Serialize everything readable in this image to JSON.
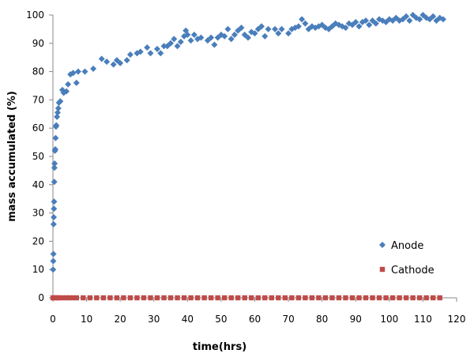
{
  "chart_data": {
    "type": "scatter",
    "title": "",
    "xlabel": "time(hrs)",
    "ylabel": "mass accumulated (%)",
    "xlim": [
      0,
      120
    ],
    "ylim": [
      0,
      100
    ],
    "xticks": [
      0,
      10,
      20,
      30,
      40,
      50,
      60,
      70,
      80,
      90,
      100,
      110,
      120
    ],
    "yticks": [
      0,
      10,
      20,
      30,
      40,
      50,
      60,
      70,
      80,
      90,
      100
    ],
    "grid": false,
    "legend_position": "bottom-right",
    "series": [
      {
        "name": "Anode",
        "color": "#4a7ebb",
        "marker": "diamond",
        "points": [
          [
            0.05,
            10
          ],
          [
            0.1,
            13
          ],
          [
            0.15,
            15.5
          ],
          [
            0.2,
            26
          ],
          [
            0.25,
            28.5
          ],
          [
            0.3,
            31.5
          ],
          [
            0.35,
            34
          ],
          [
            0.4,
            41
          ],
          [
            0.45,
            46
          ],
          [
            0.5,
            47.5
          ],
          [
            0.6,
            52
          ],
          [
            0.7,
            52.5
          ],
          [
            0.8,
            56.5
          ],
          [
            0.9,
            60.5
          ],
          [
            1.0,
            61
          ],
          [
            1.2,
            64
          ],
          [
            1.4,
            65.5
          ],
          [
            1.6,
            67
          ],
          [
            1.8,
            69
          ],
          [
            2.2,
            69.5
          ],
          [
            2.8,
            73.5
          ],
          [
            3.2,
            72.5
          ],
          [
            4,
            73
          ],
          [
            4.5,
            75.5
          ],
          [
            5.2,
            79
          ],
          [
            6,
            79.5
          ],
          [
            7,
            76
          ],
          [
            7.5,
            80
          ],
          [
            9.5,
            80
          ],
          [
            12,
            81
          ],
          [
            14.5,
            84.5
          ],
          [
            16,
            83.5
          ],
          [
            18,
            82.5
          ],
          [
            19,
            84
          ],
          [
            20,
            83
          ],
          [
            22,
            84
          ],
          [
            23,
            86
          ],
          [
            25,
            86.5
          ],
          [
            26,
            87
          ],
          [
            28,
            88.5
          ],
          [
            29,
            86.5
          ],
          [
            31,
            88
          ],
          [
            32,
            86.5
          ],
          [
            33,
            89
          ],
          [
            34,
            89
          ],
          [
            35,
            90
          ],
          [
            36,
            91.5
          ],
          [
            37,
            89
          ],
          [
            38,
            90.5
          ],
          [
            39,
            92.5
          ],
          [
            39.5,
            94.5
          ],
          [
            40,
            93
          ],
          [
            41,
            91
          ],
          [
            42,
            93
          ],
          [
            43,
            91.5
          ],
          [
            44,
            92
          ],
          [
            46,
            91
          ],
          [
            47,
            92
          ],
          [
            48,
            89.5
          ],
          [
            49,
            92
          ],
          [
            50,
            93
          ],
          [
            51,
            92.5
          ],
          [
            52,
            95
          ],
          [
            53,
            91.5
          ],
          [
            54,
            93
          ],
          [
            55,
            94.5
          ],
          [
            56,
            95.5
          ],
          [
            57,
            93
          ],
          [
            58,
            92
          ],
          [
            59,
            94
          ],
          [
            60,
            93.5
          ],
          [
            61,
            95
          ],
          [
            62,
            96
          ],
          [
            63,
            92.5
          ],
          [
            64,
            95
          ],
          [
            66,
            95
          ],
          [
            67,
            93.5
          ],
          [
            68,
            95
          ],
          [
            70,
            93.5
          ],
          [
            71,
            95
          ],
          [
            72,
            95.5
          ],
          [
            73,
            96
          ],
          [
            74,
            98.5
          ],
          [
            75,
            97
          ],
          [
            76,
            95
          ],
          [
            77,
            96
          ],
          [
            78,
            95.5
          ],
          [
            79,
            96
          ],
          [
            80,
            96.5
          ],
          [
            81,
            95.5
          ],
          [
            82,
            95
          ],
          [
            83,
            96
          ],
          [
            84,
            97
          ],
          [
            85,
            96.5
          ],
          [
            86,
            96
          ],
          [
            87,
            95.5
          ],
          [
            88,
            97
          ],
          [
            89,
            96.5
          ],
          [
            90,
            97.5
          ],
          [
            91,
            96
          ],
          [
            92,
            97.5
          ],
          [
            93,
            98
          ],
          [
            94,
            96.5
          ],
          [
            95,
            98
          ],
          [
            96,
            97
          ],
          [
            97,
            98.5
          ],
          [
            98,
            98
          ],
          [
            99,
            97.5
          ],
          [
            100,
            98.5
          ],
          [
            101,
            98
          ],
          [
            102,
            99
          ],
          [
            103,
            98
          ],
          [
            104,
            98.5
          ],
          [
            105,
            99.5
          ],
          [
            106,
            98
          ],
          [
            107,
            100
          ],
          [
            108,
            99
          ],
          [
            109,
            98.5
          ],
          [
            110,
            100
          ],
          [
            111,
            99
          ],
          [
            112,
            98.5
          ],
          [
            113,
            99.5
          ],
          [
            114,
            98
          ],
          [
            115,
            99
          ],
          [
            116,
            98.5
          ]
        ]
      },
      {
        "name": "Cathode",
        "color": "#be4b48",
        "marker": "square",
        "points": [
          [
            0,
            0
          ],
          [
            0.5,
            0
          ],
          [
            1,
            0
          ],
          [
            1.5,
            0
          ],
          [
            2,
            0
          ],
          [
            3,
            0
          ],
          [
            4,
            0
          ],
          [
            5,
            0
          ],
          [
            6,
            0
          ],
          [
            7,
            0
          ],
          [
            9,
            0
          ],
          [
            11,
            0
          ],
          [
            13,
            0
          ],
          [
            15,
            0
          ],
          [
            17,
            0
          ],
          [
            19,
            0
          ],
          [
            21,
            0
          ],
          [
            23,
            0
          ],
          [
            25,
            0
          ],
          [
            27,
            0
          ],
          [
            29,
            0
          ],
          [
            31,
            0
          ],
          [
            33,
            0
          ],
          [
            35,
            0
          ],
          [
            37,
            0
          ],
          [
            39,
            0
          ],
          [
            41,
            0
          ],
          [
            43,
            0
          ],
          [
            45,
            0
          ],
          [
            47,
            0
          ],
          [
            49,
            0
          ],
          [
            51,
            0
          ],
          [
            53,
            0
          ],
          [
            55,
            0
          ],
          [
            57,
            0
          ],
          [
            59,
            0
          ],
          [
            61,
            0
          ],
          [
            63,
            0
          ],
          [
            65,
            0
          ],
          [
            67,
            0
          ],
          [
            69,
            0
          ],
          [
            71,
            0
          ],
          [
            73,
            0
          ],
          [
            75,
            0
          ],
          [
            77,
            0
          ],
          [
            79,
            0
          ],
          [
            81,
            0
          ],
          [
            83,
            0
          ],
          [
            85,
            0
          ],
          [
            87,
            0
          ],
          [
            89,
            0
          ],
          [
            91,
            0
          ],
          [
            93,
            0
          ],
          [
            95,
            0
          ],
          [
            97,
            0
          ],
          [
            99,
            0
          ],
          [
            101,
            0
          ],
          [
            103,
            0
          ],
          [
            105,
            0
          ],
          [
            107,
            0
          ],
          [
            109,
            0
          ],
          [
            111,
            0
          ],
          [
            113,
            0
          ],
          [
            115,
            0
          ]
        ]
      }
    ]
  }
}
